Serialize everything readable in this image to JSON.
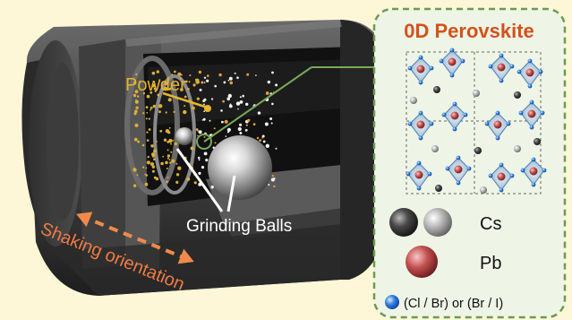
{
  "colors": {
    "background": "#fdf7d8",
    "title": "#d3521c",
    "panel_border": "#6e9a52",
    "powder": "#e6b52e",
    "arrow": "#ef8a4a",
    "shaking_text": "#ef7b44"
  },
  "labels": {
    "powder": "Powder",
    "grinding_balls": "Grinding Balls",
    "shaking": "Shaking orientation"
  },
  "panel": {
    "title": "0D Perovskite",
    "legend": [
      {
        "label": "Cs",
        "icon": "cs-atom-icon"
      },
      {
        "label": "Pb",
        "icon": "pb-atom-icon"
      },
      {
        "label": "(Cl / Br) or (Br / I)",
        "icon": "halide-atom-icon"
      }
    ]
  }
}
